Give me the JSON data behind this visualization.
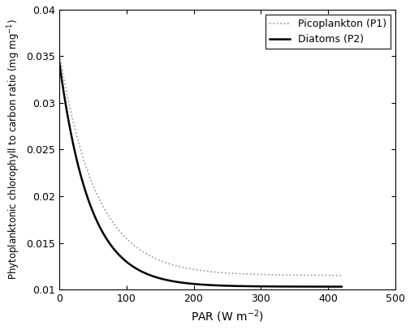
{
  "title": "",
  "xlabel": "PAR (W m$^{-2}$)",
  "ylabel": "Phytoplanktonic chlorophyll to carbon ratio (mg mg$^{-1}$)",
  "xlim": [
    0,
    500
  ],
  "ylim": [
    0.01,
    0.04
  ],
  "yticks": [
    0.01,
    0.015,
    0.02,
    0.025,
    0.03,
    0.035,
    0.04
  ],
  "xticks": [
    0,
    100,
    200,
    300,
    400,
    500
  ],
  "legend_labels": [
    "Picoplankton (P1)",
    "Diatoms (P2)"
  ],
  "p1_color": "#999999",
  "p2_color": "#000000",
  "p1_linestyle": "dotted",
  "p2_linestyle": "solid",
  "p1_linewidth": 1.2,
  "p2_linewidth": 1.8,
  "p1_theta_min": 0.0115,
  "p1_theta_max": 0.0355,
  "p1_k": 0.018,
  "p2_theta_min": 0.0103,
  "p2_theta_max": 0.0345,
  "p2_k": 0.022,
  "x_max": 420
}
